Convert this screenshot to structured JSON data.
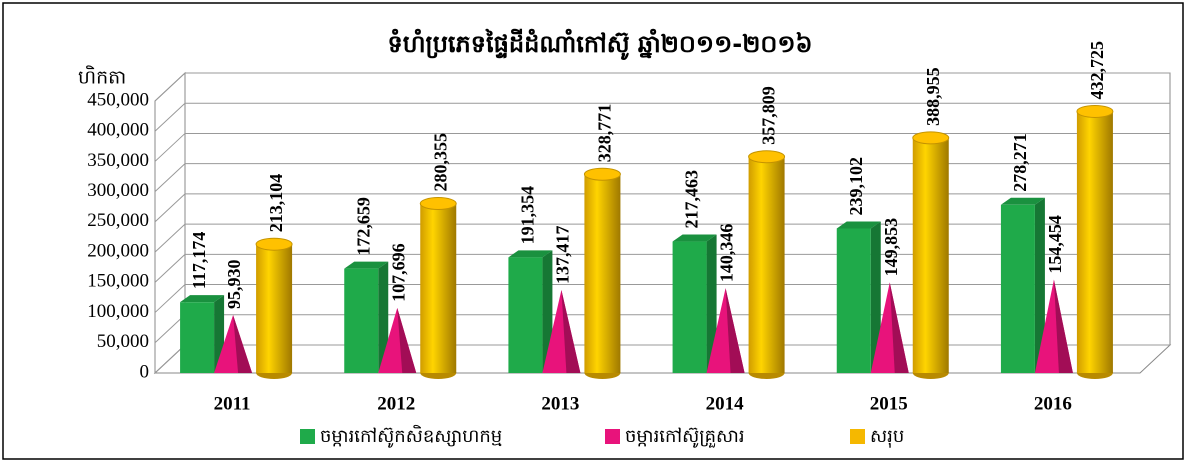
{
  "chart_data": {
    "type": "bar3d",
    "title": "ទំហំប្រភេទផ្ទៃដីដំណាំកៅស៊ូ ឆ្នាំ២០១១-២០១៦",
    "y_label": "ហិកតា",
    "categories": [
      "2011",
      "2012",
      "2013",
      "2014",
      "2015",
      "2016"
    ],
    "series": [
      {
        "name": "ចម្ការកៅស៊ូកសិឧស្សាហកម្ម",
        "color": "#1faa4a",
        "shape": "box",
        "values": [
          117174,
          172659,
          191354,
          217463,
          239102,
          278271
        ],
        "value_labels": [
          "117,174",
          "172,659",
          "191,354",
          "217,463",
          "239,102",
          "278,271"
        ]
      },
      {
        "name": "ចម្ការកៅស៊ូគ្រួសារ",
        "color": "#e8137b",
        "shape": "cone",
        "values": [
          95930,
          107696,
          137417,
          140346,
          149853,
          154454
        ],
        "value_labels": [
          "95,930",
          "107,696",
          "137,417",
          "140,346",
          "149,853",
          "154,454"
        ]
      },
      {
        "name": "សរុប",
        "color": "#f5b800",
        "shape": "cylinder",
        "values": [
          213104,
          280355,
          328771,
          357809,
          388955,
          432725
        ],
        "value_labels": [
          "213,104",
          "280,355",
          "328,771",
          "357,809",
          "388,955",
          "432,725"
        ]
      }
    ],
    "ylim": [
      0,
      450000
    ],
    "yticks": [
      0,
      {
        "value": 50000,
        "label": "50,000"
      },
      {
        "value": 100000,
        "label": "100,000"
      },
      {
        "value": 150000,
        "label": "150,000"
      },
      {
        "value": 200000,
        "label": "200,000"
      },
      {
        "value": 250000,
        "label": "250,000"
      },
      {
        "value": 300000,
        "label": "300,000"
      },
      {
        "value": 350000,
        "label": "350,000"
      },
      {
        "value": 400000,
        "label": "400,000"
      },
      {
        "value": 450000,
        "label": "450,000"
      }
    ],
    "grid": true,
    "legend": "bottom"
  }
}
